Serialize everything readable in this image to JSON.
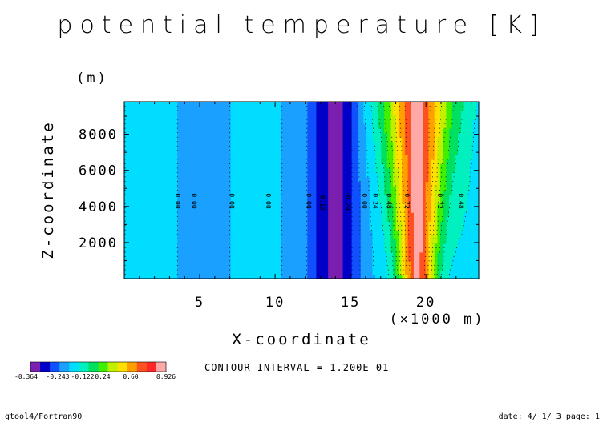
{
  "figure": {
    "title": "potential temperature [K]",
    "footer_left": "gtool4/Fortran90",
    "footer_right": "date: 4/ 1/ 3 page: 1",
    "contour_interval": "CONTOUR INTERVAL = 1.200E-01"
  },
  "chart_data": {
    "type": "heatmap",
    "title": "potential temperature [K]",
    "xlabel": "X-coordinate",
    "xunit": "(×1000 m)",
    "ylabel": "Z-coordinate",
    "yunit": "(m)",
    "xlim": [
      0,
      23.5
    ],
    "ylim": [
      0,
      9800
    ],
    "xticks": [
      5,
      10,
      15,
      20
    ],
    "yticks": [
      2000,
      4000,
      6000,
      8000
    ],
    "levels": [
      -0.364,
      -0.243,
      -0.122,
      0.0,
      0.12,
      0.24,
      0.36,
      0.48,
      0.6,
      0.72,
      0.84,
      0.926
    ],
    "colors": [
      "#7a1fb0",
      "#0000c8",
      "#1050ff",
      "#1aa0ff",
      "#00ddff",
      "#00f0c0",
      "#00e060",
      "#40f000",
      "#c0f000",
      "#ffe000",
      "#ffa000",
      "#ff5020",
      "#ff2828",
      "#ffa8a8"
    ],
    "colorbar_labels": [
      "-0.364",
      "-0.243",
      "-0.122",
      "0.24",
      "0.60",
      "0.926"
    ],
    "contour_labels": [
      {
        "x": 3.4,
        "z": 4300,
        "text": "0.00"
      },
      {
        "x": 4.5,
        "z": 4300,
        "text": "0.00"
      },
      {
        "x": 7.0,
        "z": 4300,
        "text": "0.00"
      },
      {
        "x": 9.4,
        "z": 4300,
        "text": "0.00"
      },
      {
        "x": 12.1,
        "z": 4300,
        "text": "0.00"
      },
      {
        "x": 13.0,
        "z": 4300,
        "text": "-0.12"
      },
      {
        "x": 14.7,
        "z": 4300,
        "text": "-0.24"
      },
      {
        "x": 15.8,
        "z": 4300,
        "text": "0.00"
      },
      {
        "x": 16.5,
        "z": 4300,
        "text": "0.24"
      },
      {
        "x": 17.4,
        "z": 4300,
        "text": "0.48"
      },
      {
        "x": 18.6,
        "z": 4300,
        "text": "0.72"
      },
      {
        "x": 20.8,
        "z": 4300,
        "text": "0.72"
      },
      {
        "x": 22.2,
        "z": 4300,
        "text": "0.48"
      }
    ]
  }
}
